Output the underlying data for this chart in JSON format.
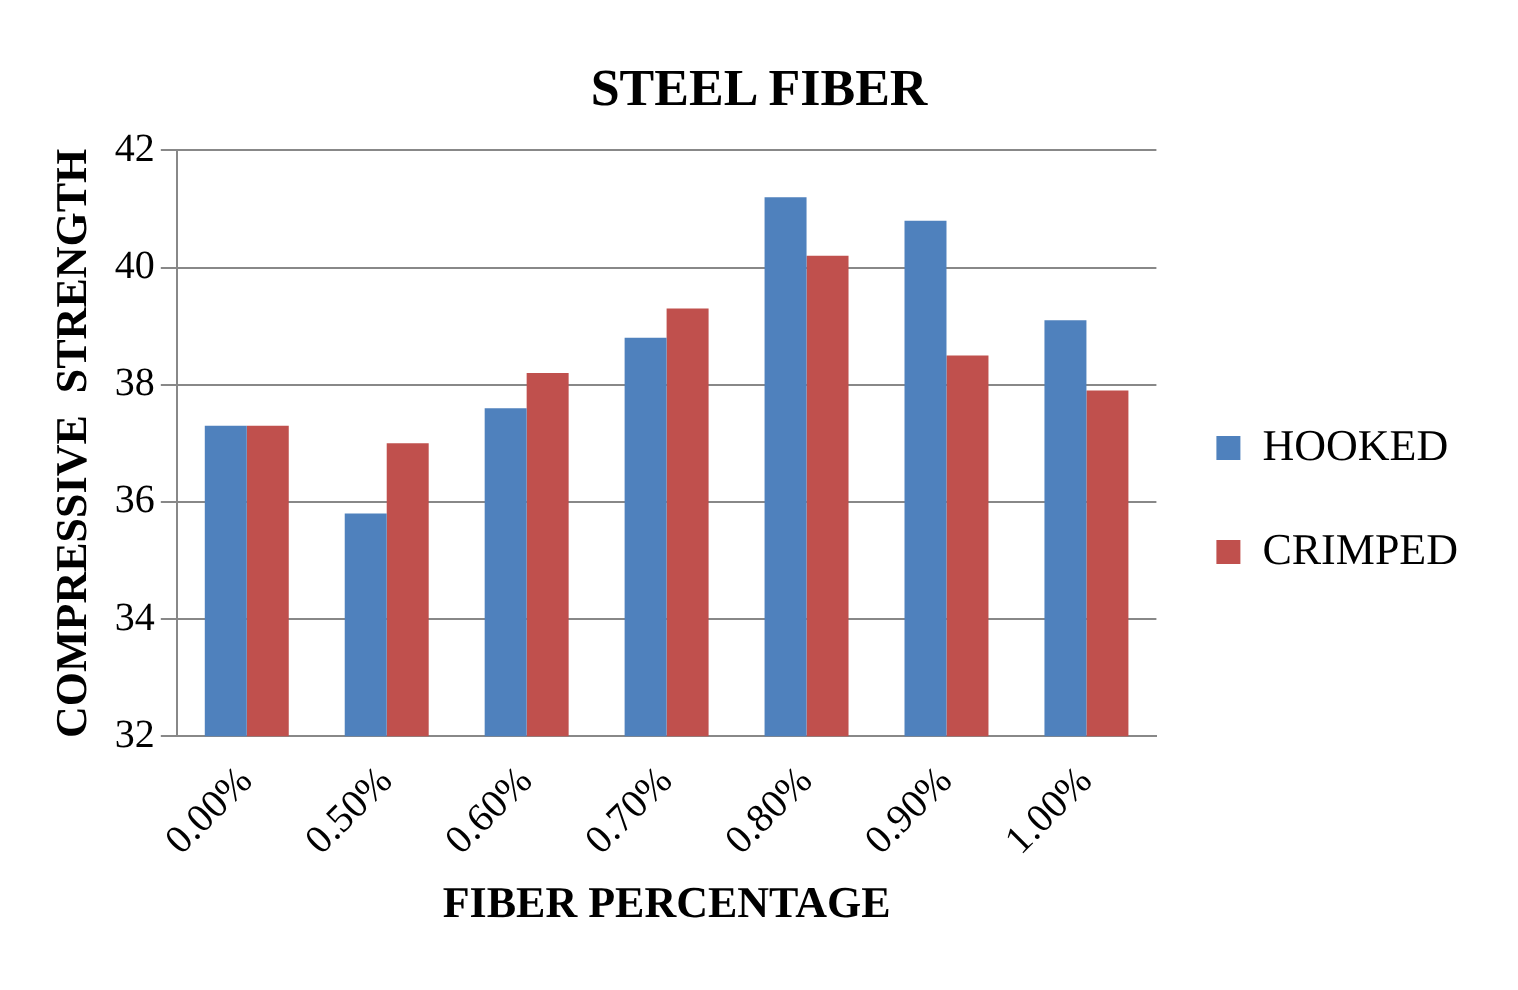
{
  "chart_data": {
    "type": "bar",
    "title": "STEEL FIBER",
    "xlabel": "FIBER PERCENTAGE",
    "ylabel": "COMPRESSIVE  STRENGTH",
    "categories": [
      "0.00%",
      "0.50%",
      "0.60%",
      "0.70%",
      "0.80%",
      "0.90%",
      "1.00%"
    ],
    "series": [
      {
        "name": "HOOKED",
        "color": "#4f81bd",
        "values": [
          37.3,
          35.8,
          37.6,
          38.8,
          41.2,
          40.8,
          39.1
        ]
      },
      {
        "name": "CRIMPED",
        "color": "#c0504d",
        "values": [
          37.3,
          37.0,
          38.2,
          39.3,
          40.2,
          38.5,
          37.9
        ]
      }
    ],
    "ylim": [
      32,
      42
    ],
    "yticks": [
      32,
      34,
      36,
      38,
      40,
      42
    ],
    "grid": "y",
    "legend": "right"
  }
}
